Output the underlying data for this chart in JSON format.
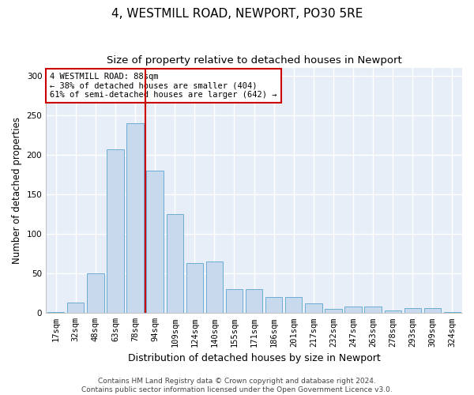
{
  "title1": "4, WESTMILL ROAD, NEWPORT, PO30 5RE",
  "title2": "Size of property relative to detached houses in Newport",
  "xlabel": "Distribution of detached houses by size in Newport",
  "ylabel": "Number of detached properties",
  "categories": [
    "17sqm",
    "32sqm",
    "48sqm",
    "63sqm",
    "78sqm",
    "94sqm",
    "109sqm",
    "124sqm",
    "140sqm",
    "155sqm",
    "171sqm",
    "186sqm",
    "201sqm",
    "217sqm",
    "232sqm",
    "247sqm",
    "263sqm",
    "278sqm",
    "293sqm",
    "309sqm",
    "324sqm"
  ],
  "values": [
    1,
    13,
    50,
    207,
    240,
    180,
    125,
    63,
    65,
    30,
    30,
    20,
    20,
    12,
    5,
    8,
    8,
    3,
    6,
    6,
    1
  ],
  "bar_color": "#c8d9ee",
  "bar_edge_color": "#6aadd5",
  "vline_color": "#cc0000",
  "annotation_text": "4 WESTMILL ROAD: 88sqm\n← 38% of detached houses are smaller (404)\n61% of semi-detached houses are larger (642) →",
  "annotation_box_color": "#ffffff",
  "annotation_box_edge": "#cc0000",
  "footer": "Contains HM Land Registry data © Crown copyright and database right 2024.\nContains public sector information licensed under the Open Government Licence v3.0.",
  "ylim": [
    0,
    310
  ],
  "plot_bg_color": "#e8eef7",
  "fig_bg_color": "#ffffff",
  "grid_color": "#ffffff",
  "title1_fontsize": 11,
  "title2_fontsize": 9.5,
  "xlabel_fontsize": 9,
  "ylabel_fontsize": 8.5,
  "tick_fontsize": 7.5,
  "footer_fontsize": 6.5
}
